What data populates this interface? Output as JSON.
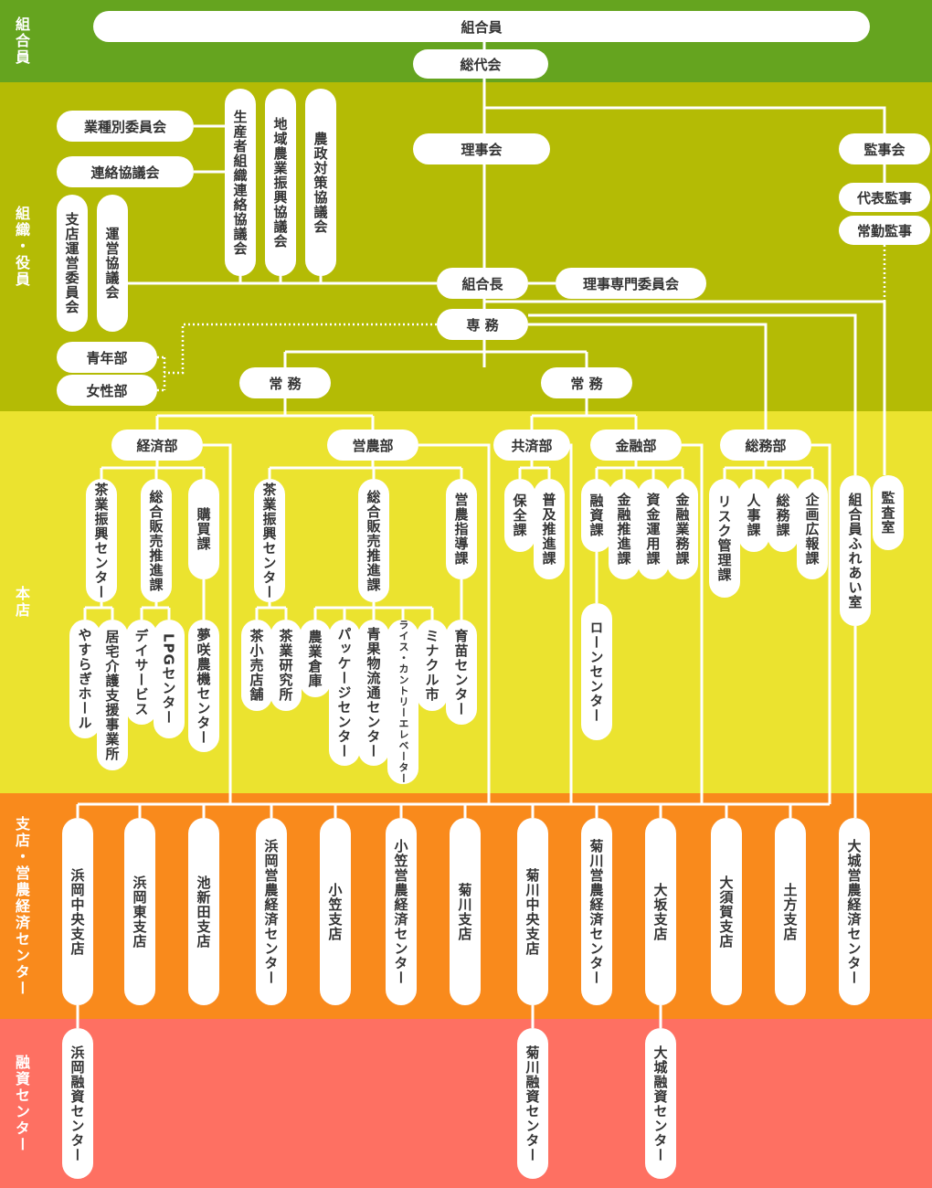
{
  "bands": [
    "組合員",
    "組織・役員",
    "本店",
    "支店・営農経済センター",
    "融資センター"
  ],
  "nodes": [
    "組合員",
    "総代会",
    "理事会",
    "監事会",
    "代表監事",
    "常勤監事",
    "業種別委員会",
    "連絡協議会",
    "生産者組織連絡協議会",
    "地域農業振興協議会",
    "農政対策協議会",
    "支店運営委員会",
    "運営協議会",
    "組合長",
    "理事専門委員会",
    "専 務",
    "青年部",
    "女性部",
    "常 務",
    "常 務",
    "経済部",
    "営農部",
    "共済部",
    "金融部",
    "総務部",
    "組合員ふれあい室",
    "監査室",
    "茶業振興センター",
    "総合販売推進課",
    "購買課",
    "やすらぎホール",
    "居宅介護支援事業所",
    "デイサービス",
    "LPGセンター",
    "夢咲農機センター",
    "茶業振興センター",
    "総合販売推進課",
    "営農指導課",
    "茶小売店舗",
    "茶業研究所",
    "農業倉庫",
    "パッケージセンター",
    "青果物流通センター",
    "ライス・カントリーエレベーター",
    "ミナクル市",
    "育苗センター",
    "保全課",
    "普及推進課",
    "融資課",
    "金融推進課",
    "資金運用課",
    "金融業務課",
    "ローンセンター",
    "リスク管理課",
    "人事課",
    "総務課",
    "企画広報課",
    "浜岡中央支店",
    "浜岡東支店",
    "池新田支店",
    "浜岡営農経済センター",
    "小笠支店",
    "小笠営農経済センター",
    "菊川支店",
    "菊川中央支店",
    "菊川営農経済センター",
    "大坂支店",
    "大須賀支店",
    "土方支店",
    "大城営農経済センター",
    "浜岡融資センター",
    "菊川融資センター",
    "大城融資センター"
  ]
}
